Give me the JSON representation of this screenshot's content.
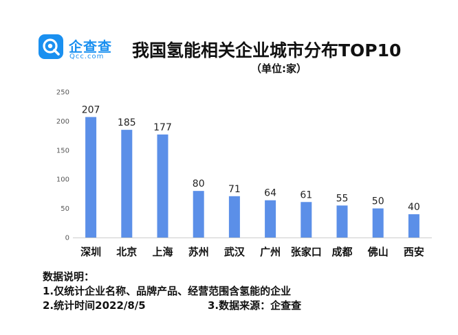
{
  "brand": {
    "name": "企查查",
    "domain": "Qcc.com",
    "accent": "#1a90f0",
    "icon": "qcc-logo-icon"
  },
  "header": {
    "title": "我国氢能相关企业城市分布TOP10",
    "unit": "（单位:家）"
  },
  "chart_data": {
    "type": "bar",
    "title": "我国氢能相关企业城市分布TOP10",
    "subtitle": "（单位:家）",
    "categories": [
      "深圳",
      "北京",
      "上海",
      "苏州",
      "武汉",
      "广州",
      "张家口",
      "成都",
      "佛山",
      "西安"
    ],
    "values": [
      207,
      185,
      177,
      80,
      71,
      64,
      61,
      55,
      50,
      40
    ],
    "yticks": [
      0,
      50,
      100,
      150,
      200,
      250
    ],
    "ylim": [
      0,
      250
    ],
    "xlabel": "",
    "ylabel": "",
    "bar_color": "#5b8fe8",
    "grid": false,
    "legend": "none",
    "data_labels": true
  },
  "notes": {
    "heading": "数据说明：",
    "line1": "1.仅统计企业名称、品牌产品、经营范围含氢能的企业",
    "line2": "2.统计时间2022/8/5",
    "source": "3.数据来源：企查查"
  }
}
